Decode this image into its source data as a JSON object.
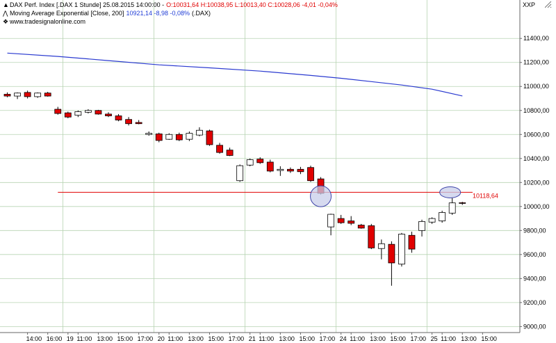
{
  "header": {
    "line1_prefix": "DAX Perf. Index [.DAX  1 Stunde] 25.08.2015 14:00:00 -",
    "line1_ohlc": "O:10031,64 H:10038,95 L:10013,40 C:10028,06 -4,01 -0,04%",
    "line2_prefix": "Moving Average Exponential [Close, 200]",
    "line2_values": "10921,14 -8,98 -0,08%",
    "line2_suffix": "(.DAX)",
    "line3": "www.tradesignalonline.com",
    "caret_up": "▲",
    "caret_line": "⋀",
    "link_icon": "❖",
    "xxp": "XXP"
  },
  "colors": {
    "up_candle": "#ffffff",
    "down_candle": "#e00000",
    "ma_line": "#2a3ad0",
    "level_line": "#e00000",
    "grid": "#b7d3b2",
    "ellipse_fill": "#c8cdea",
    "ellipse_stroke": "#3d44a8"
  },
  "chart_data": {
    "type": "candlestick",
    "title": "DAX Perf. Index [.DAX  1 Stunde]",
    "ylim": [
      8950,
      11720
    ],
    "y_ticks": [
      9000,
      9200,
      9400,
      9600,
      9800,
      10000,
      10200,
      10400,
      10600,
      10800,
      11000,
      11200,
      11400
    ],
    "y_tick_labels": [
      "9000,00",
      "9200,00",
      "9400,00",
      "9600,00",
      "9800,00",
      "10000,00",
      "10200,00",
      "10400,00",
      "10600,00",
      "10800,00",
      "11000,00",
      "11200,00",
      "11400,00"
    ],
    "x_labels": [
      {
        "i": 2,
        "t": "14:00"
      },
      {
        "i": 4,
        "t": "16:00"
      },
      {
        "i": 6,
        "t": "19"
      },
      {
        "i": 7,
        "t": "11:00"
      },
      {
        "i": 9,
        "t": "13:00"
      },
      {
        "i": 11,
        "t": "15:00"
      },
      {
        "i": 13,
        "t": "17:00"
      },
      {
        "i": 15,
        "t": "20"
      },
      {
        "i": 16,
        "t": "11:00"
      },
      {
        "i": 18,
        "t": "13:00"
      },
      {
        "i": 20,
        "t": "15:00"
      },
      {
        "i": 22,
        "t": "17:00"
      },
      {
        "i": 24,
        "t": "21"
      },
      {
        "i": 25,
        "t": "11:00"
      },
      {
        "i": 27,
        "t": "13:00"
      },
      {
        "i": 29,
        "t": "15:00"
      },
      {
        "i": 31,
        "t": "17:00"
      },
      {
        "i": 33,
        "t": "24"
      },
      {
        "i": 34,
        "t": "11:00"
      },
      {
        "i": 36,
        "t": "13:00"
      },
      {
        "i": 38,
        "t": "15:00"
      },
      {
        "i": 40,
        "t": "17:00"
      },
      {
        "i": 42,
        "t": "25"
      },
      {
        "i": 43,
        "t": "11:00"
      },
      {
        "i": 45,
        "t": "13:00"
      },
      {
        "i": 47,
        "t": "15:00"
      }
    ],
    "day_separators": [
      5.5,
      14.5,
      23.5,
      32.5,
      41.5
    ],
    "candles": [
      {
        "o": 10935,
        "h": 10950,
        "l": 10910,
        "c": 10920
      },
      {
        "o": 10920,
        "h": 10950,
        "l": 10895,
        "c": 10945
      },
      {
        "o": 10950,
        "h": 10965,
        "l": 10900,
        "c": 10915
      },
      {
        "o": 10915,
        "h": 10950,
        "l": 10905,
        "c": 10945
      },
      {
        "o": 10945,
        "h": 10955,
        "l": 10915,
        "c": 10920
      },
      {
        "o": 10810,
        "h": 10830,
        "l": 10765,
        "c": 10775
      },
      {
        "o": 10780,
        "h": 10790,
        "l": 10735,
        "c": 10745
      },
      {
        "o": 10760,
        "h": 10800,
        "l": 10745,
        "c": 10790
      },
      {
        "o": 10785,
        "h": 10810,
        "l": 10775,
        "c": 10800
      },
      {
        "o": 10800,
        "h": 10805,
        "l": 10765,
        "c": 10770
      },
      {
        "o": 10770,
        "h": 10785,
        "l": 10745,
        "c": 10755
      },
      {
        "o": 10755,
        "h": 10770,
        "l": 10710,
        "c": 10720
      },
      {
        "o": 10725,
        "h": 10745,
        "l": 10675,
        "c": 10690
      },
      {
        "o": 10700,
        "h": 10720,
        "l": 10685,
        "c": 10690
      },
      {
        "o": 10600,
        "h": 10625,
        "l": 10590,
        "c": 10610
      },
      {
        "o": 10605,
        "h": 10615,
        "l": 10535,
        "c": 10550
      },
      {
        "o": 10560,
        "h": 10610,
        "l": 10555,
        "c": 10600
      },
      {
        "o": 10600,
        "h": 10615,
        "l": 10545,
        "c": 10555
      },
      {
        "o": 10560,
        "h": 10625,
        "l": 10545,
        "c": 10610
      },
      {
        "o": 10595,
        "h": 10660,
        "l": 10585,
        "c": 10635
      },
      {
        "o": 10630,
        "h": 10640,
        "l": 10505,
        "c": 10515
      },
      {
        "o": 10510,
        "h": 10530,
        "l": 10440,
        "c": 10450
      },
      {
        "o": 10470,
        "h": 10490,
        "l": 10420,
        "c": 10425
      },
      {
        "o": 10215,
        "h": 10350,
        "l": 10205,
        "c": 10340
      },
      {
        "o": 10345,
        "h": 10400,
        "l": 10335,
        "c": 10390
      },
      {
        "o": 10395,
        "h": 10410,
        "l": 10355,
        "c": 10365
      },
      {
        "o": 10370,
        "h": 10390,
        "l": 10285,
        "c": 10295
      },
      {
        "o": 10300,
        "h": 10335,
        "l": 10255,
        "c": 10310
      },
      {
        "o": 10310,
        "h": 10325,
        "l": 10280,
        "c": 10295
      },
      {
        "o": 10310,
        "h": 10330,
        "l": 10270,
        "c": 10290
      },
      {
        "o": 10325,
        "h": 10340,
        "l": 10205,
        "c": 10215
      },
      {
        "o": 10230,
        "h": 10245,
        "l": 10100,
        "c": 10110
      },
      {
        "o": 9830,
        "h": 9940,
        "l": 9760,
        "c": 9935
      },
      {
        "o": 9900,
        "h": 9930,
        "l": 9855,
        "c": 9865
      },
      {
        "o": 9880,
        "h": 9920,
        "l": 9845,
        "c": 9860
      },
      {
        "o": 9845,
        "h": 9855,
        "l": 9815,
        "c": 9820
      },
      {
        "o": 9840,
        "h": 9855,
        "l": 9645,
        "c": 9655
      },
      {
        "o": 9650,
        "h": 9725,
        "l": 9560,
        "c": 9690
      },
      {
        "o": 9685,
        "h": 9710,
        "l": 9340,
        "c": 9530
      },
      {
        "o": 9520,
        "h": 9780,
        "l": 9500,
        "c": 9770
      },
      {
        "o": 9760,
        "h": 9790,
        "l": 9615,
        "c": 9645
      },
      {
        "o": 9800,
        "h": 9890,
        "l": 9750,
        "c": 9875
      },
      {
        "o": 9870,
        "h": 9910,
        "l": 9855,
        "c": 9900
      },
      {
        "o": 9880,
        "h": 9965,
        "l": 9865,
        "c": 9950
      },
      {
        "o": 9945,
        "h": 10070,
        "l": 9930,
        "c": 10030
      },
      {
        "o": 10031.64,
        "h": 10038.95,
        "l": 10013.4,
        "c": 10028.06
      }
    ],
    "ema200": [
      {
        "i": 0,
        "v": 11278
      },
      {
        "i": 5,
        "v": 11250
      },
      {
        "i": 10,
        "v": 11215
      },
      {
        "i": 15,
        "v": 11180
      },
      {
        "i": 20,
        "v": 11155
      },
      {
        "i": 25,
        "v": 11128
      },
      {
        "i": 30,
        "v": 11092
      },
      {
        "i": 33,
        "v": 11068
      },
      {
        "i": 36,
        "v": 11040
      },
      {
        "i": 39,
        "v": 11012
      },
      {
        "i": 42,
        "v": 10977
      },
      {
        "i": 45,
        "v": 10921
      }
    ],
    "level_value": 10118.64,
    "level_label": "10118,64",
    "level_start_index": 5,
    "highlight_ellipses": [
      {
        "i": 31,
        "v": 10085
      },
      {
        "i": 44,
        "v": 10118
      }
    ]
  }
}
